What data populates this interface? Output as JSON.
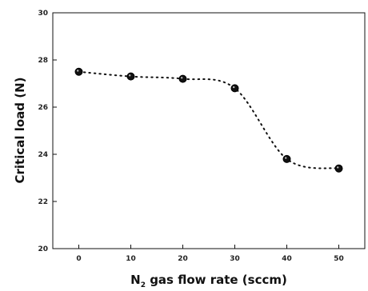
{
  "chart_data": {
    "type": "scatter",
    "title": "",
    "xlabel_parts": {
      "prefix": "N",
      "subscript": "2",
      "suffix": " gas flow rate (sccm)"
    },
    "ylabel": "Critical load (N)",
    "xlim": [
      -5,
      55
    ],
    "ylim": [
      20,
      30
    ],
    "xticks": [
      0,
      10,
      20,
      30,
      40,
      50
    ],
    "yticks": [
      20,
      22,
      24,
      26,
      28,
      30
    ],
    "x": [
      0,
      10,
      20,
      30,
      40,
      50
    ],
    "y": [
      27.5,
      27.3,
      27.2,
      26.8,
      23.8,
      23.4
    ],
    "marker": "filled-circle",
    "connector": "dotted-line",
    "color": "#111111",
    "grid": false,
    "legend": "none"
  }
}
